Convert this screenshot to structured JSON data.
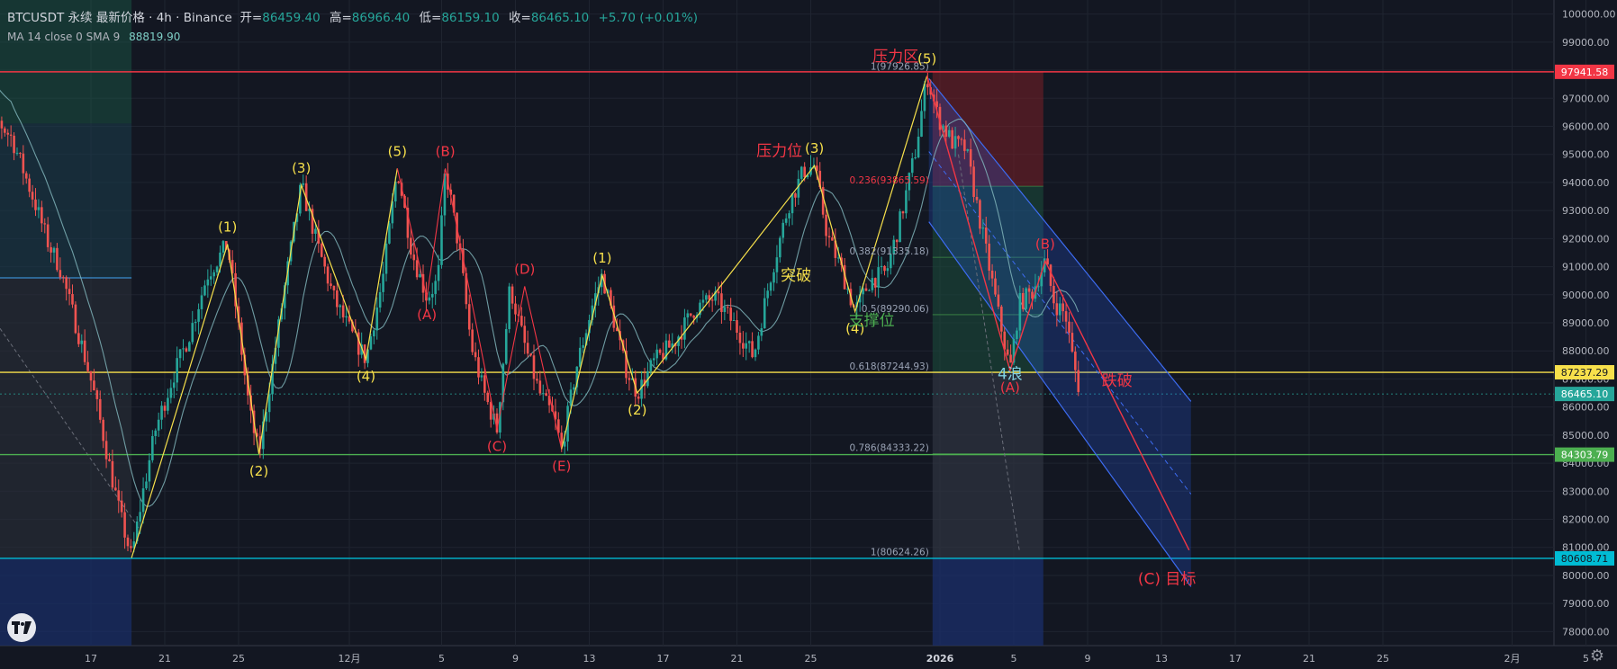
{
  "header": {
    "symbol_line": "BTCUSDT 永续 最新价格 · 4h · Binance",
    "open_label": "开=",
    "open": "86459.40",
    "high_label": "高=",
    "high": "86966.40",
    "low_label": "低=",
    "low": "86159.10",
    "close_label": "收=",
    "close": "86465.10",
    "change": "+5.70 (+0.01%)",
    "indicator": "MA 14 close 0 SMA 9",
    "indicator_value": "88819.90"
  },
  "colors": {
    "background": "#131722",
    "up": "#26a69a",
    "down": "#ef5350",
    "wave": "#f7e04b",
    "wave_red": "#f23645",
    "channel": "#2962ff",
    "hline_red": "#f23645",
    "hline_yellow": "#f7e04b",
    "hline_green": "#4caf50",
    "hline_cyan": "#00bcd4",
    "ma": "#7fb3b8"
  },
  "chart_data": {
    "type": "candlestick",
    "symbol": "BTCUSDT",
    "interval": "4h",
    "ylim": [
      77500,
      100500
    ],
    "y_ticks": [
      "100000.00",
      "99000.00",
      "98000.00",
      "97000.00",
      "96000.00",
      "95000.00",
      "94000.00",
      "93000.00",
      "92000.00",
      "91000.00",
      "90000.00",
      "89000.00",
      "88000.00",
      "87000.00",
      "86000.00",
      "85000.00",
      "84000.00",
      "83000.00",
      "82000.00",
      "81000.00",
      "80000.00",
      "79000.00",
      "78000.00"
    ],
    "x_ticks": [
      {
        "label": "17",
        "t": 2
      },
      {
        "label": "21",
        "t": 6
      },
      {
        "label": "25",
        "t": 10
      },
      {
        "label": "12月",
        "t": 16
      },
      {
        "label": "5",
        "t": 21
      },
      {
        "label": "9",
        "t": 25
      },
      {
        "label": "13",
        "t": 29
      },
      {
        "label": "17",
        "t": 33
      },
      {
        "label": "21",
        "t": 37
      },
      {
        "label": "25",
        "t": 41
      },
      {
        "label": "2026",
        "t": 48
      },
      {
        "label": "5",
        "t": 52
      },
      {
        "label": "9",
        "t": 56
      },
      {
        "label": "13",
        "t": 60
      },
      {
        "label": "17",
        "t": 64
      },
      {
        "label": "21",
        "t": 68
      },
      {
        "label": "25",
        "t": 72
      },
      {
        "label": "2月",
        "t": 79
      },
      {
        "label": "5",
        "t": 83
      }
    ],
    "ma_label": "MA 14 close 0 SMA 9",
    "price_path": [
      [
        -4.5,
        99000
      ],
      [
        -4.0,
        97500
      ],
      [
        -3.2,
        96300
      ],
      [
        -2.3,
        95600
      ],
      [
        -1.7,
        94500
      ],
      [
        -1.0,
        93200
      ],
      [
        -0.3,
        91800
      ],
      [
        0.3,
        91000
      ],
      [
        0.9,
        89600
      ],
      [
        1.5,
        88200
      ],
      [
        2.1,
        86700
      ],
      [
        2.6,
        85200
      ],
      [
        3.1,
        83600
      ],
      [
        3.6,
        82100
      ],
      [
        4.2,
        80624
      ],
      [
        4.8,
        82900
      ],
      [
        5.5,
        85200
      ],
      [
        6.4,
        87000
      ],
      [
        7.4,
        88700
      ],
      [
        8.3,
        90700
      ],
      [
        9.4,
        91800
      ],
      [
        10.0,
        88800
      ],
      [
        10.6,
        85800
      ],
      [
        11.1,
        84330
      ],
      [
        11.8,
        87300
      ],
      [
        12.6,
        90700
      ],
      [
        13.4,
        93900
      ],
      [
        14.3,
        91700
      ],
      [
        15.2,
        89800
      ],
      [
        16.2,
        88500
      ],
      [
        16.9,
        87700
      ],
      [
        17.8,
        90500
      ],
      [
        18.6,
        94500
      ],
      [
        19.4,
        91500
      ],
      [
        20.2,
        89900
      ],
      [
        20.8,
        90500
      ],
      [
        21.2,
        94500
      ],
      [
        22.0,
        91400
      ],
      [
        22.6,
        88200
      ],
      [
        23.3,
        86500
      ],
      [
        24.0,
        85200
      ],
      [
        24.7,
        90300
      ],
      [
        25.5,
        88200
      ],
      [
        26.3,
        86500
      ],
      [
        27.1,
        85600
      ],
      [
        27.5,
        84500
      ],
      [
        28.3,
        87400
      ],
      [
        29.2,
        89700
      ],
      [
        29.7,
        90700
      ],
      [
        30.4,
        88900
      ],
      [
        30.9,
        87500
      ],
      [
        31.6,
        86500
      ],
      [
        32.5,
        87600
      ],
      [
        33.6,
        88300
      ],
      [
        34.7,
        89500
      ],
      [
        35.8,
        89900
      ],
      [
        36.9,
        88900
      ],
      [
        37.9,
        87800
      ],
      [
        38.8,
        90600
      ],
      [
        39.8,
        93200
      ],
      [
        40.6,
        94400
      ],
      [
        41.2,
        94600
      ],
      [
        41.9,
        92100
      ],
      [
        42.6,
        91000
      ],
      [
        43.4,
        89400
      ],
      [
        44.2,
        90500
      ],
      [
        45.1,
        90800
      ],
      [
        45.9,
        92800
      ],
      [
        46.7,
        95200
      ],
      [
        47.3,
        97800
      ],
      [
        47.9,
        96300
      ],
      [
        48.7,
        95400
      ],
      [
        49.4,
        95200
      ],
      [
        50.0,
        93200
      ],
      [
        50.6,
        91200
      ],
      [
        51.2,
        89200
      ],
      [
        51.8,
        87300
      ],
      [
        52.3,
        89700
      ],
      [
        53.0,
        90100
      ],
      [
        53.7,
        91200
      ],
      [
        54.2,
        89700
      ],
      [
        54.8,
        89300
      ],
      [
        55.2,
        87700
      ],
      [
        55.6,
        86465
      ]
    ],
    "horizontal_levels": [
      {
        "price": 97941.58,
        "label": "97941.58",
        "color": "#f23645"
      },
      {
        "price": 87237.29,
        "label": "87237.29",
        "color": "#f7e04b"
      },
      {
        "price": 86465.1,
        "label": "86465.10",
        "color": "#26a69a"
      },
      {
        "price": 84303.79,
        "label": "84303.79",
        "color": "#4caf50"
      },
      {
        "price": 80608.71,
        "label": "80608.71",
        "color": "#00bcd4"
      }
    ],
    "fib_levels": [
      {
        "label": "1(97926.85)",
        "price": 97926.85
      },
      {
        "label": "0.236(93865.59)",
        "price": 93865.59
      },
      {
        "label": "0.382(91335.18)",
        "price": 91335.18
      },
      {
        "label": "0.5(89290.06)",
        "price": 89290.06
      },
      {
        "label": "0.618(87244.93)",
        "price": 87244.93
      },
      {
        "label": "0.786(84333.22)",
        "price": 84333.22
      },
      {
        "label": "1(80624.26)",
        "price": 80624.26
      }
    ],
    "wave_points": [
      {
        "label": "(1)",
        "t": 9.4,
        "price": 91800,
        "color": "yellow",
        "pos": "above"
      },
      {
        "label": "(2)",
        "t": 11.1,
        "price": 84330,
        "color": "yellow",
        "pos": "below"
      },
      {
        "label": "(3)",
        "t": 13.4,
        "price": 93900,
        "color": "yellow",
        "pos": "above"
      },
      {
        "label": "(4)",
        "t": 16.9,
        "price": 87700,
        "color": "yellow",
        "pos": "below"
      },
      {
        "label": "(5)",
        "t": 18.6,
        "price": 94500,
        "color": "yellow",
        "pos": "above"
      },
      {
        "label": "(B)",
        "t": 21.2,
        "price": 94500,
        "color": "red",
        "pos": "above"
      },
      {
        "label": "(A)",
        "t": 20.2,
        "price": 89900,
        "color": "red",
        "pos": "below"
      },
      {
        "label": "(D)",
        "t": 25.5,
        "price": 90300,
        "color": "red",
        "pos": "above"
      },
      {
        "label": "(C)",
        "t": 24.0,
        "price": 85200,
        "color": "red",
        "pos": "below"
      },
      {
        "label": "(E)",
        "t": 27.5,
        "price": 84500,
        "color": "red",
        "pos": "below"
      },
      {
        "label": "(1)",
        "t": 29.7,
        "price": 90700,
        "color": "yellow",
        "pos": "above"
      },
      {
        "label": "(2)",
        "t": 31.6,
        "price": 86500,
        "color": "yellow",
        "pos": "below"
      },
      {
        "label": "(3)",
        "t": 41.2,
        "price": 94600,
        "color": "yellow",
        "pos": "above"
      },
      {
        "label": "(4)",
        "t": 43.4,
        "price": 89400,
        "color": "yellow",
        "pos": "below"
      },
      {
        "label": "(5)",
        "t": 47.3,
        "price": 97800,
        "color": "yellow",
        "pos": "above"
      },
      {
        "label": "(A)",
        "t": 51.8,
        "price": 87300,
        "color": "red",
        "pos": "below"
      },
      {
        "label": "(B)",
        "t": 53.7,
        "price": 91200,
        "color": "red",
        "pos": "above"
      }
    ],
    "annotations": [
      {
        "text": "压力区",
        "t": 45.6,
        "price": 98300,
        "color": "#f23645"
      },
      {
        "text": "压力位",
        "t": 39.3,
        "price": 94950,
        "color": "#f23645"
      },
      {
        "text": "突破",
        "t": 40.2,
        "price": 90500,
        "color": "#f7e04b"
      },
      {
        "text": "支撑位",
        "t": 44.3,
        "price": 88900,
        "color": "#4caf50"
      },
      {
        "text": "4浪",
        "t": 51.8,
        "price": 87000,
        "color": "#7fcfe0"
      },
      {
        "text": "跌破",
        "t": 57.6,
        "price": 86750,
        "color": "#f23645"
      },
      {
        "text": "(C) 目标",
        "t": 60.3,
        "price": 79700,
        "color": "#f23645"
      }
    ]
  }
}
